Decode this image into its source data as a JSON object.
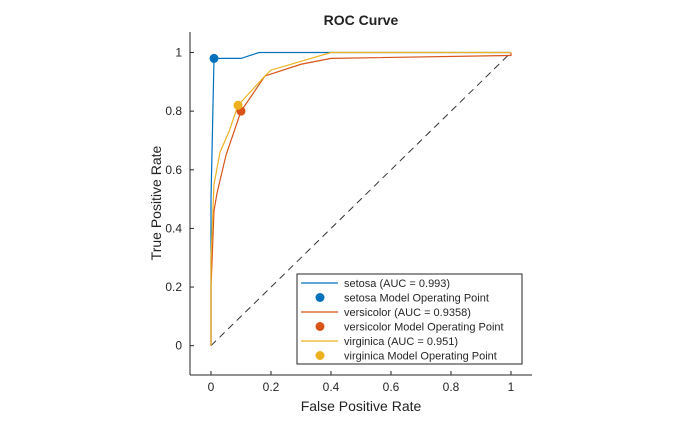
{
  "chart_data": {
    "type": "line",
    "title": "ROC Curve",
    "xlabel": "False Positive Rate",
    "ylabel": "True Positive Rate",
    "xlim": [
      -0.07,
      1.07
    ],
    "ylim": [
      -0.1,
      1.07
    ],
    "xticks": [
      "0",
      "0.2",
      "0.4",
      "0.6",
      "0.8",
      "1"
    ],
    "yticks": [
      "0",
      "0.2",
      "0.4",
      "0.6",
      "0.8",
      "1"
    ],
    "grid": false,
    "legend_position": "bottom-right",
    "series": [
      {
        "name": "setosa (AUC = 0.993)",
        "color": "#0072BD",
        "x": [
          0,
          0,
          0.01,
          0.1,
          0.16,
          1
        ],
        "y": [
          0,
          0.5,
          0.98,
          0.98,
          1,
          1
        ]
      },
      {
        "name": "versicolor (AUC = 0.9358)",
        "color": "#D95319",
        "x": [
          0,
          0,
          0.01,
          0.02,
          0.05,
          0.1,
          0.18,
          0.3,
          0.4,
          1,
          1
        ],
        "y": [
          0,
          0.2,
          0.46,
          0.52,
          0.65,
          0.8,
          0.92,
          0.96,
          0.98,
          0.99,
          1
        ]
      },
      {
        "name": "virginica (AUC = 0.951)",
        "color": "#EDB120",
        "x": [
          0,
          0,
          0.01,
          0.03,
          0.06,
          0.09,
          0.18,
          0.2,
          0.3,
          0.4,
          1
        ],
        "y": [
          0,
          0.3,
          0.55,
          0.66,
          0.73,
          0.82,
          0.92,
          0.94,
          0.97,
          1,
          1
        ]
      }
    ],
    "operating_points": [
      {
        "name": "setosa Model Operating Point",
        "color": "#0072BD",
        "x": 0.01,
        "y": 0.98
      },
      {
        "name": "versicolor Model Operating Point",
        "color": "#D95319",
        "x": 0.1,
        "y": 0.8
      },
      {
        "name": "virginica Model Operating Point",
        "color": "#EDB120",
        "x": 0.09,
        "y": 0.82
      }
    ],
    "reference_line": {
      "x": [
        0,
        1
      ],
      "y": [
        0,
        1
      ],
      "style": "dashed",
      "color": "#333333"
    }
  }
}
